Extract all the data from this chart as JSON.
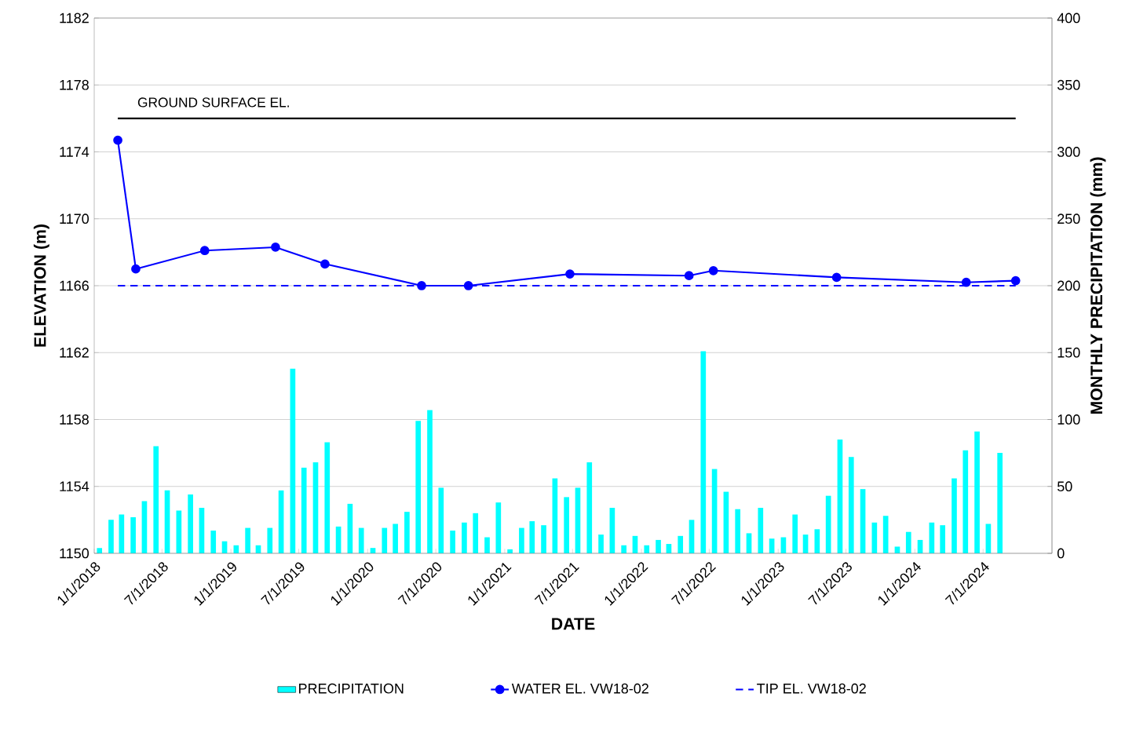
{
  "chart_data": {
    "type": "line",
    "xlabel": "DATE",
    "ylabel": "ELEVATION (m)",
    "y2label": "MONTHLY PRECIPITATION (mm)",
    "xlim": [
      "2018-01-01",
      "2025-01-01"
    ],
    "xticks": [
      {
        "value": "2018-01-01",
        "label": "1/1/2018"
      },
      {
        "value": "2018-07-01",
        "label": "7/1/2018"
      },
      {
        "value": "2019-01-01",
        "label": "1/1/2019"
      },
      {
        "value": "2019-07-01",
        "label": "7/1/2019"
      },
      {
        "value": "2020-01-01",
        "label": "1/1/2020"
      },
      {
        "value": "2020-07-01",
        "label": "7/1/2020"
      },
      {
        "value": "2021-01-01",
        "label": "1/1/2021"
      },
      {
        "value": "2021-07-01",
        "label": "7/1/2021"
      },
      {
        "value": "2022-01-01",
        "label": "1/1/2022"
      },
      {
        "value": "2022-07-01",
        "label": "7/1/2022"
      },
      {
        "value": "2023-01-01",
        "label": "1/1/2023"
      },
      {
        "value": "2023-07-01",
        "label": "7/1/2023"
      },
      {
        "value": "2024-01-01",
        "label": "1/1/2024"
      },
      {
        "value": "2024-07-01",
        "label": "7/1/2024"
      }
    ],
    "ylim": [
      1150,
      1182
    ],
    "yticks": [
      1150,
      1154,
      1158,
      1162,
      1166,
      1170,
      1174,
      1178,
      1182
    ],
    "y2lim": [
      0,
      400
    ],
    "y2ticks": [
      0,
      50,
      100,
      150,
      200,
      250,
      300,
      350,
      400
    ],
    "grid": true,
    "legend": "bottom",
    "annotations": [
      "GROUND SURFACE EL."
    ],
    "series": [
      {
        "name": "PRECIPITATION",
        "type": "bar",
        "axis": "y2",
        "color": "#00ffff",
        "x": [
          "2018-01-15",
          "2018-02-15",
          "2018-03-15",
          "2018-04-15",
          "2018-05-15",
          "2018-06-15",
          "2018-07-15",
          "2018-08-15",
          "2018-09-15",
          "2018-10-15",
          "2018-11-15",
          "2018-12-15",
          "2019-01-15",
          "2019-02-15",
          "2019-03-15",
          "2019-04-15",
          "2019-05-15",
          "2019-06-15",
          "2019-07-15",
          "2019-08-15",
          "2019-09-15",
          "2019-10-15",
          "2019-11-15",
          "2019-12-15",
          "2020-01-15",
          "2020-02-15",
          "2020-03-15",
          "2020-04-15",
          "2020-05-15",
          "2020-06-15",
          "2020-07-15",
          "2020-08-15",
          "2020-09-15",
          "2020-10-15",
          "2020-11-15",
          "2020-12-15",
          "2021-01-15",
          "2021-02-15",
          "2021-03-15",
          "2021-04-15",
          "2021-05-15",
          "2021-06-15",
          "2021-07-15",
          "2021-08-15",
          "2021-09-15",
          "2021-10-15",
          "2021-11-15",
          "2021-12-15",
          "2022-01-15",
          "2022-02-15",
          "2022-03-15",
          "2022-04-15",
          "2022-05-15",
          "2022-06-15",
          "2022-07-15",
          "2022-08-15",
          "2022-09-15",
          "2022-10-15",
          "2022-11-15",
          "2022-12-15",
          "2023-01-15",
          "2023-02-15",
          "2023-03-15",
          "2023-04-15",
          "2023-05-15",
          "2023-06-15",
          "2023-07-15",
          "2023-08-15",
          "2023-09-15",
          "2023-10-15",
          "2023-11-15",
          "2023-12-15",
          "2024-01-15",
          "2024-02-15",
          "2024-03-15",
          "2024-04-15",
          "2024-05-15",
          "2024-06-15",
          "2024-07-15",
          "2024-08-15"
        ],
        "values": [
          4,
          25,
          29,
          27,
          39,
          80,
          47,
          32,
          44,
          34,
          17,
          9,
          6,
          19,
          6,
          19,
          47,
          138,
          64,
          68,
          83,
          20,
          37,
          19,
          4,
          19,
          22,
          31,
          99,
          107,
          49,
          17,
          23,
          30,
          12,
          38,
          3,
          19,
          24,
          21,
          56,
          42,
          49,
          68,
          14,
          34,
          6,
          13,
          6,
          10,
          7,
          13,
          25,
          151,
          63,
          46,
          33,
          15,
          34,
          11,
          12,
          29,
          14,
          18,
          43,
          85,
          72,
          48,
          23,
          28,
          5,
          16,
          10,
          23,
          21,
          56,
          77,
          91,
          22,
          75
        ]
      },
      {
        "name": "WATER EL. VW18-02",
        "color": "#0000ff",
        "marker": "circle",
        "line_style": "solid",
        "x": [
          "2018-03-05",
          "2018-04-22",
          "2018-10-23",
          "2019-04-30",
          "2019-09-09",
          "2020-05-24",
          "2020-09-26",
          "2021-06-24",
          "2022-05-08",
          "2022-07-12",
          "2023-06-06",
          "2024-05-17",
          "2024-09-26"
        ],
        "values": [
          1174.7,
          1167.0,
          1168.1,
          1168.3,
          1167.3,
          1166.0,
          1166.0,
          1166.7,
          1166.6,
          1166.9,
          1166.5,
          1166.2,
          1166.3
        ]
      },
      {
        "name": "TIP EL. VW18-02",
        "color": "#0000ff",
        "line_style": "dashed",
        "x": [
          "2018-03-05",
          "2024-09-26"
        ],
        "values": [
          1166,
          1166
        ]
      },
      {
        "color": "#000000",
        "line_style": "solid",
        "x": [
          "2018-03-05",
          "2024-09-26"
        ],
        "values": [
          1176,
          1176
        ]
      }
    ]
  }
}
